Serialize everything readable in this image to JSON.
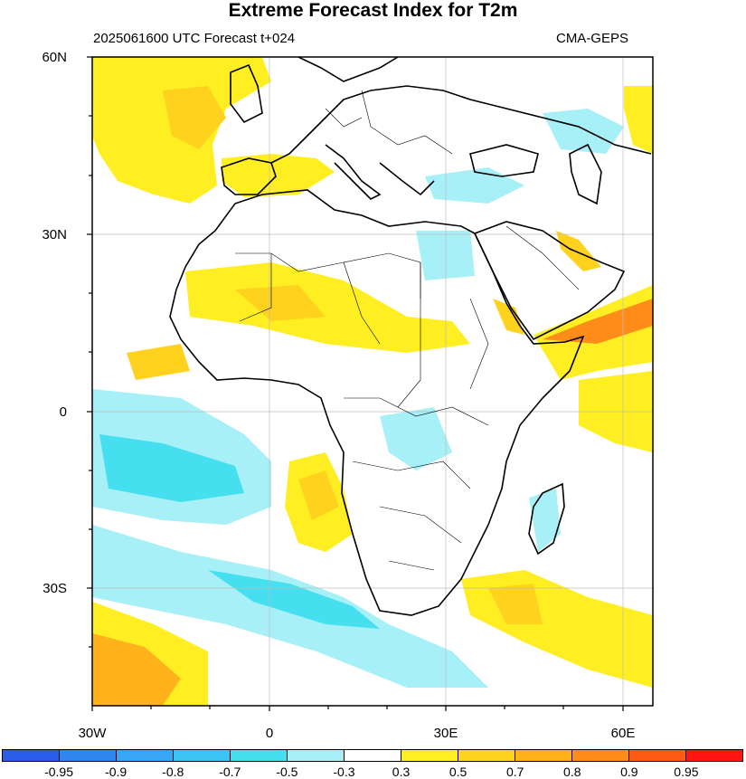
{
  "title": "Extreme Forecast Index for T2m",
  "subtitle_left": "2025061600 UTC Forecast t+024",
  "subtitle_right": "CMA-GEPS",
  "lat_labels": [
    "60N",
    "30N",
    "0",
    "30S"
  ],
  "lon_labels": [
    "30W",
    "0",
    "30E",
    "60E"
  ],
  "colorbar": {
    "colors": [
      "#2a5ee8",
      "#2f86ef",
      "#38a6f3",
      "#3cc4f4",
      "#45dfef",
      "#a8f0f7",
      "#ffffff",
      "#ffee22",
      "#ffd21e",
      "#ffb21a",
      "#ff8c18",
      "#ff5a14",
      "#ff1410"
    ],
    "labels": [
      "-0.95",
      "-0.9",
      "-0.8",
      "-0.7",
      "-0.5",
      "-0.3",
      "0.3",
      "0.5",
      "0.7",
      "0.8",
      "0.9",
      "0.95"
    ]
  },
  "map": {
    "extent": {
      "lon_min": -30,
      "lon_max": 65,
      "lat_min": -50,
      "lat_max": 60
    },
    "colors": {
      "warm": "#ffee22",
      "warmer": "#ffd21e",
      "orange": "#ffb21a",
      "deep_orange": "#ff8c18",
      "cool": "#a8f0f7",
      "cooler": "#45dfef",
      "coolest": "#38a6f3",
      "coast": "#000000"
    }
  }
}
